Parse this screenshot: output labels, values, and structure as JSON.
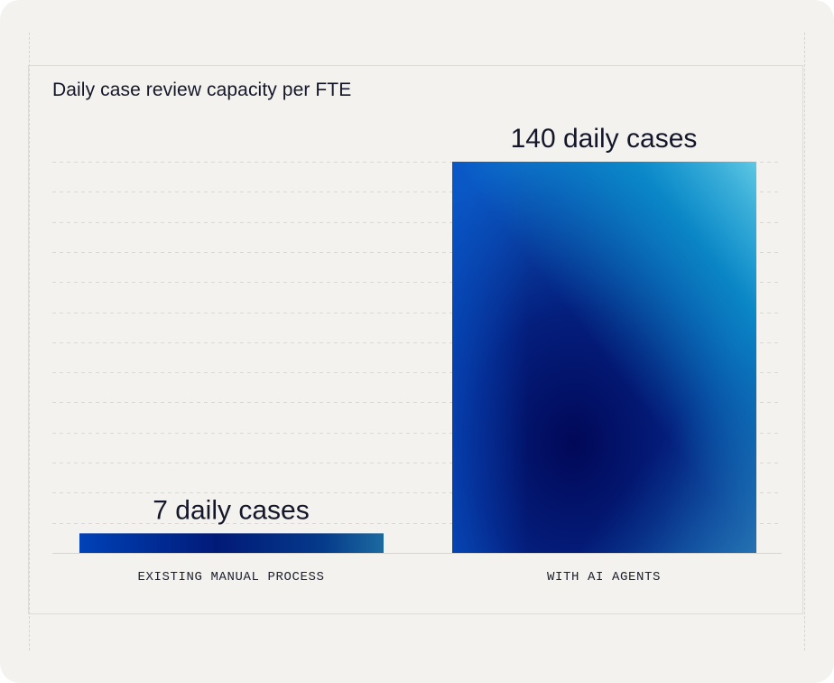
{
  "chart_data": {
    "type": "bar",
    "title": "Daily case review capacity per FTE",
    "categories": [
      "EXISTING MANUAL PROCESS",
      "WITH AI AGENTS"
    ],
    "values": [
      7,
      140
    ],
    "data_labels": [
      "7 daily cases",
      "140 daily cases"
    ],
    "xlabel": "",
    "ylabel": "",
    "ylim": [
      0,
      140
    ],
    "grid": true,
    "legend": "none",
    "colors": {
      "background": "#f3f2ee",
      "bar_dark": "#010a5c",
      "bar_mid": "#0045b0",
      "bar_light": "#2fb6dc",
      "text": "#14172a",
      "grid": "#d9d8d3"
    }
  }
}
